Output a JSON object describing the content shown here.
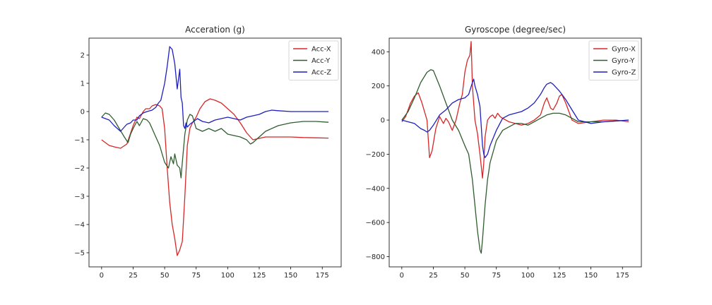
{
  "chart_data": [
    {
      "type": "line",
      "title": "Acceration (g)",
      "xlabel": "",
      "ylabel": "",
      "xlim": [
        -10,
        190
      ],
      "ylim": [
        -5.5,
        2.6
      ],
      "xticks": [
        0,
        25,
        50,
        75,
        100,
        125,
        150,
        175
      ],
      "yticks": [
        -5,
        -4,
        -3,
        -2,
        -1,
        0,
        1,
        2
      ],
      "grid": false,
      "legend_placement": "top-right",
      "series": [
        {
          "name": "Acc-X",
          "color": "#d62728",
          "x": [
            0,
            3,
            6,
            10,
            15,
            20,
            25,
            28,
            30,
            33,
            35,
            38,
            40,
            43,
            46,
            48,
            50,
            52,
            54,
            56,
            58,
            60,
            62,
            64,
            66,
            68,
            70,
            72,
            75,
            78,
            82,
            86,
            90,
            95,
            100,
            105,
            110,
            115,
            120,
            125,
            130,
            140,
            150,
            160,
            170,
            180
          ],
          "y": [
            -1.0,
            -1.1,
            -1.2,
            -1.25,
            -1.3,
            -1.15,
            -0.5,
            -0.2,
            -0.25,
            0.0,
            0.1,
            0.1,
            0.2,
            0.25,
            0.2,
            0.1,
            -0.6,
            -2.0,
            -3.2,
            -4.0,
            -4.5,
            -5.1,
            -4.9,
            -4.6,
            -3.0,
            -1.2,
            -0.6,
            -0.4,
            -0.2,
            0.1,
            0.35,
            0.45,
            0.4,
            0.3,
            0.1,
            -0.1,
            -0.4,
            -0.75,
            -1.0,
            -0.95,
            -0.9,
            -0.9,
            -0.9,
            -0.92,
            -0.93,
            -0.94
          ]
        },
        {
          "name": "Acc-Y",
          "color": "#2f5d2f",
          "x": [
            0,
            3,
            6,
            10,
            14,
            18,
            21,
            23,
            25,
            28,
            30,
            33,
            36,
            38,
            40,
            43,
            46,
            50,
            53,
            55,
            57,
            58,
            60,
            62,
            63,
            64,
            66,
            68,
            70,
            72,
            75,
            80,
            85,
            90,
            95,
            100,
            105,
            110,
            115,
            118,
            120,
            125,
            130,
            140,
            150,
            160,
            170,
            180
          ],
          "y": [
            -0.2,
            -0.05,
            -0.1,
            -0.3,
            -0.6,
            -0.9,
            -1.1,
            -0.8,
            -0.6,
            -0.35,
            -0.5,
            -0.25,
            -0.3,
            -0.4,
            -0.6,
            -0.9,
            -1.2,
            -1.8,
            -2.0,
            -1.6,
            -1.85,
            -1.5,
            -1.9,
            -2.0,
            -2.35,
            -1.8,
            -0.8,
            -0.3,
            -0.1,
            -0.15,
            -0.6,
            -0.7,
            -0.6,
            -0.7,
            -0.6,
            -0.8,
            -0.85,
            -0.9,
            -1.0,
            -1.15,
            -1.1,
            -0.9,
            -0.7,
            -0.5,
            -0.4,
            -0.35,
            -0.35,
            -0.38
          ]
        },
        {
          "name": "Acc-Z",
          "color": "#1f1fbf",
          "x": [
            0,
            3,
            6,
            10,
            15,
            18,
            20,
            23,
            25,
            28,
            30,
            33,
            36,
            40,
            43,
            45,
            47,
            50,
            52,
            54,
            56,
            58,
            60,
            62,
            63,
            64,
            65,
            66,
            67,
            68,
            70,
            73,
            76,
            80,
            85,
            90,
            95,
            100,
            105,
            110,
            115,
            120,
            125,
            130,
            135,
            140,
            150,
            160,
            170,
            180
          ],
          "y": [
            -0.2,
            -0.25,
            -0.3,
            -0.5,
            -0.7,
            -0.55,
            -0.45,
            -0.4,
            -0.3,
            -0.3,
            -0.15,
            -0.05,
            0.0,
            0.05,
            0.15,
            0.3,
            0.4,
            1.0,
            1.6,
            2.3,
            2.2,
            1.7,
            0.8,
            1.5,
            0.5,
            0.3,
            -0.5,
            -0.6,
            -0.4,
            -0.55,
            -0.45,
            -0.35,
            -0.25,
            -0.35,
            -0.4,
            -0.3,
            -0.25,
            -0.2,
            -0.25,
            -0.3,
            -0.2,
            -0.15,
            -0.1,
            0.0,
            0.05,
            0.03,
            0.0,
            0.0,
            0.0,
            0.0
          ]
        }
      ]
    },
    {
      "type": "line",
      "title": "Gyroscope (degree/sec)",
      "xlabel": "",
      "ylabel": "",
      "xlim": [
        -10,
        190
      ],
      "ylim": [
        -860,
        480
      ],
      "xticks": [
        0,
        25,
        50,
        75,
        100,
        125,
        150,
        175
      ],
      "yticks": [
        -800,
        -600,
        -400,
        -200,
        0,
        200,
        400
      ],
      "grid": false,
      "legend_placement": "top-right",
      "series": [
        {
          "name": "Gyro-X",
          "color": "#d62728",
          "x": [
            0,
            3,
            7,
            10,
            13,
            16,
            20,
            22,
            24,
            27,
            30,
            33,
            35,
            37,
            40,
            43,
            46,
            48,
            50,
            52,
            54,
            55,
            56,
            58,
            60,
            62,
            64,
            65,
            66,
            68,
            70,
            72,
            74,
            76,
            78,
            80,
            85,
            90,
            95,
            100,
            105,
            110,
            113,
            115,
            118,
            120,
            123,
            125,
            127,
            130,
            135,
            140,
            150,
            160,
            170,
            180
          ],
          "y": [
            -10,
            20,
            100,
            140,
            160,
            100,
            0,
            -220,
            -180,
            -50,
            20,
            -20,
            10,
            -10,
            -60,
            0,
            100,
            150,
            280,
            350,
            380,
            460,
            200,
            0,
            -80,
            -200,
            -340,
            -250,
            -100,
            0,
            20,
            30,
            10,
            40,
            20,
            10,
            -10,
            -20,
            -30,
            -20,
            0,
            30,
            100,
            130,
            70,
            60,
            100,
            140,
            150,
            100,
            0,
            -20,
            -10,
            0,
            0,
            -10
          ]
        },
        {
          "name": "Gyro-Y",
          "color": "#2f5d2f",
          "x": [
            0,
            5,
            10,
            15,
            20,
            23,
            25,
            30,
            35,
            40,
            45,
            50,
            53,
            56,
            58,
            60,
            62,
            63,
            64,
            66,
            68,
            70,
            75,
            80,
            85,
            90,
            95,
            100,
            105,
            110,
            115,
            120,
            125,
            130,
            135,
            140,
            150,
            160,
            170,
            180
          ],
          "y": [
            0,
            50,
            130,
            220,
            280,
            295,
            290,
            200,
            100,
            0,
            -60,
            -150,
            -200,
            -350,
            -500,
            -650,
            -760,
            -780,
            -700,
            -500,
            -350,
            -250,
            -120,
            -60,
            -40,
            -20,
            -20,
            -30,
            -10,
            10,
            30,
            40,
            40,
            30,
            10,
            -10,
            -10,
            -10,
            -5,
            0
          ]
        },
        {
          "name": "Gyro-Z",
          "color": "#1f1fbf",
          "x": [
            0,
            5,
            10,
            15,
            18,
            20,
            22,
            25,
            30,
            35,
            40,
            45,
            50,
            53,
            56,
            57,
            58,
            60,
            62,
            64,
            65,
            66,
            68,
            70,
            75,
            80,
            85,
            90,
            95,
            100,
            105,
            110,
            113,
            115,
            118,
            120,
            125,
            130,
            135,
            140,
            145,
            150,
            160,
            170,
            180
          ],
          "y": [
            0,
            -10,
            -20,
            -50,
            -60,
            -70,
            -60,
            -30,
            30,
            60,
            100,
            120,
            130,
            150,
            220,
            240,
            200,
            150,
            80,
            -150,
            -200,
            -220,
            -200,
            -150,
            -60,
            10,
            30,
            40,
            50,
            70,
            100,
            150,
            190,
            210,
            220,
            210,
            170,
            120,
            60,
            0,
            -10,
            -20,
            -10,
            -5,
            0
          ]
        }
      ]
    }
  ]
}
